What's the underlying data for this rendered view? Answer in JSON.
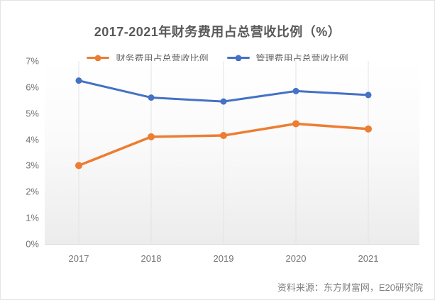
{
  "chart_data": {
    "type": "line",
    "title": "2017-2021年财务费用占总营收比例（%）",
    "categories": [
      "2017",
      "2018",
      "2019",
      "2020",
      "2021"
    ],
    "series": [
      {
        "name": "财务费用占总营收比例",
        "color": "#ED7D31",
        "values": [
          3.0,
          4.1,
          4.15,
          4.6,
          4.4
        ]
      },
      {
        "name": "管理费用占总营收比例",
        "color": "#4472C4",
        "values": [
          6.25,
          5.6,
          5.45,
          5.85,
          5.7
        ]
      }
    ],
    "xlabel": "",
    "ylabel": "",
    "ylim": [
      0,
      7
    ],
    "ytick_step": 1,
    "ytick_suffix": "%",
    "grid": "vertical-only",
    "gridline_color": "#e3e3e3",
    "legend_position": "top"
  },
  "source_note": "资料来源：东方财富网，E20研究院"
}
